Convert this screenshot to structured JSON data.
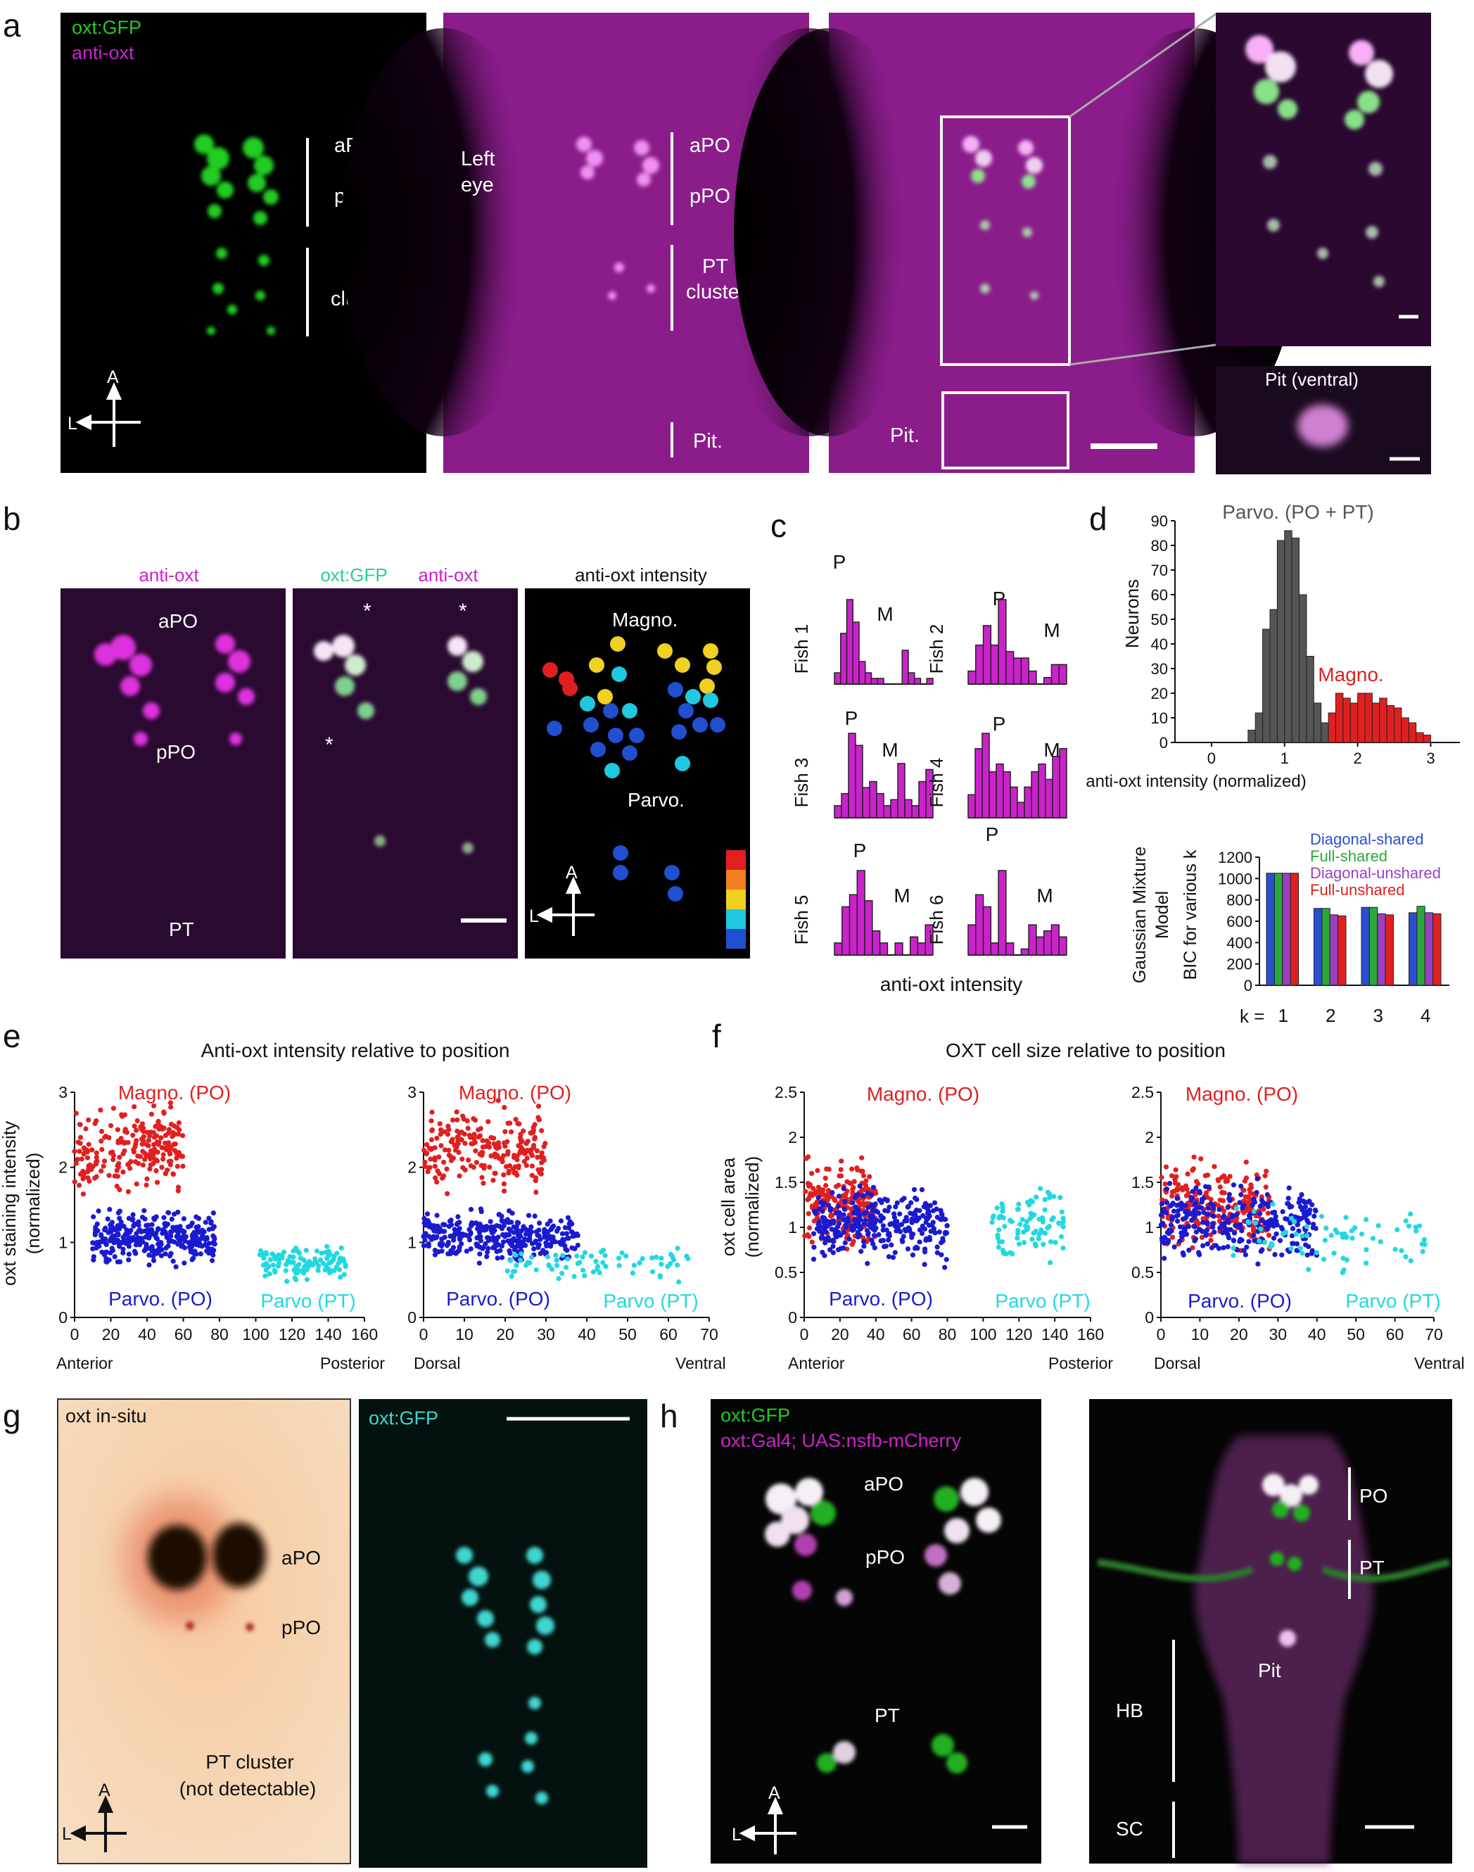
{
  "panel_letters": [
    "a",
    "b",
    "c",
    "d",
    "e",
    "f",
    "g",
    "h"
  ],
  "colors": {
    "magenta": "#cc22cc",
    "green": "#22cc22",
    "teal_green": "#2bd08a",
    "cyan": "#22d8e0",
    "red": "#e02020",
    "blue": "#1a1ad0",
    "grey_bar": "#555555",
    "insitu_bg": "#f3cfa8",
    "insitu_spot": "#1a0a05",
    "cyan_gfp": "#3fd6d0"
  },
  "a": {
    "legend_green": "oxt:GFP",
    "legend_magenta": "anti-oxt",
    "labels": {
      "apo": "aPO",
      "ppo": "pPO",
      "pt": "PT",
      "cluster": "cluster",
      "left": "Left",
      "eye": "eye",
      "pit": "Pit.",
      "pit_ventral": "Pit (ventral)"
    },
    "compass": {
      "a": "A",
      "l": "L"
    }
  },
  "b": {
    "titles": {
      "anti_oxt": "anti-oxt",
      "oxt_gfp": "oxt:GFP",
      "anti_oxt_2": "anti-oxt",
      "intensity": "anti-oxt intensity"
    },
    "labels": {
      "apo": "aPO",
      "ppo": "pPO",
      "pt": "PT",
      "magno": "Magno.",
      "parvo": "Parvo.",
      "star": "*"
    },
    "compass": {
      "a": "A",
      "l": "L"
    }
  },
  "c": {
    "xlabel": "anti-oxt intensity",
    "peak_p": "P",
    "peak_m": "M",
    "fish": [
      {
        "label": "Fish 1",
        "values": [
          2,
          9,
          15,
          11,
          4,
          2,
          1,
          1,
          0,
          0,
          0,
          6,
          2,
          1,
          0,
          1
        ]
      },
      {
        "label": "Fish 2",
        "values": [
          2,
          6,
          9,
          6,
          13,
          5,
          4,
          4,
          2,
          0,
          1,
          3,
          3
        ]
      },
      {
        "label": "Fish 3",
        "values": [
          2,
          4,
          14,
          12,
          5,
          6,
          4,
          2,
          3,
          9,
          3,
          2,
          6,
          8
        ]
      },
      {
        "label": "Fish 4",
        "values": [
          3,
          9,
          11,
          6,
          7,
          6,
          4,
          2,
          4,
          6,
          7,
          5,
          8,
          9
        ]
      },
      {
        "label": "Fish 5",
        "values": [
          2,
          8,
          10,
          14,
          9,
          4,
          2,
          0,
          2,
          0,
          3,
          2,
          5
        ]
      },
      {
        "label": "Fish 6",
        "values": [
          5,
          10,
          8,
          2,
          14,
          2,
          0,
          1,
          5,
          3,
          4,
          5,
          3
        ]
      }
    ]
  },
  "d": {
    "title_parvo": "Parvo. (PO + PT)",
    "title_magno": "Magno.",
    "xlabel": "anti-oxt intensity (normalized)",
    "ylabel": "Neurons",
    "bic_ylabel_1": "Gaussian Mixture",
    "bic_ylabel_2": "Model",
    "bic_ylabel_3": "BIC for various k",
    "k_prefix": "k =",
    "models": [
      "Diagonal-shared",
      "Full-shared",
      "Diagonal-unshared",
      "Full-unshared"
    ],
    "model_colors": [
      "#2a4fd0",
      "#2aa83a",
      "#9a40c0",
      "#e02020"
    ]
  },
  "e": {
    "title": "Anti-oxt intensity relative to position",
    "ylabel_1": "oxt staining intensity",
    "ylabel_2": "(normalized)",
    "magno": "Magno. (PO)",
    "parvo_po": "Parvo. (PO)",
    "parvo_pt": "Parvo (PT)",
    "anterior": "Anterior",
    "posterior": "Posterior",
    "dorsal": "Dorsal",
    "ventral": "Ventral"
  },
  "f": {
    "title": "OXT cell size relative to position",
    "ylabel_1": "oxt cell area",
    "ylabel_2": "(normalized)",
    "magno": "Magno. (PO)",
    "parvo_po": "Parvo. (PO)",
    "parvo_pt": "Parvo (PT)",
    "anterior": "Anterior",
    "posterior": "Posterior",
    "dorsal": "Dorsal",
    "ventral": "Ventral"
  },
  "g": {
    "insitu": "oxt in-situ",
    "gfp": "oxt:GFP",
    "apo": "aPO",
    "ppo": "pPO",
    "pt_cluster": "PT cluster",
    "not_detectable": "(not detectable)",
    "compass": {
      "a": "A",
      "l": "L"
    }
  },
  "h": {
    "legend_green": "oxt:GFP",
    "legend_magenta": "oxt:Gal4; UAS:nsfb-mCherry",
    "apo": "aPO",
    "ppo": "pPO",
    "pt": "PT",
    "po": "PO",
    "pit": "Pit",
    "hb": "HB",
    "sc": "SC",
    "compass": {
      "a": "A",
      "l": "L"
    }
  },
  "chart_data": [
    {
      "type": "bar",
      "id": "d-histogram",
      "ylabel": "Neurons",
      "xlabel": "anti-oxt intensity (normalized)",
      "xlim": [
        -0.5,
        3.4
      ],
      "ylim": [
        0,
        90
      ],
      "xticks": [
        0,
        1,
        2,
        3
      ],
      "yticks": [
        0,
        10,
        20,
        30,
        40,
        50,
        60,
        70,
        80,
        90
      ],
      "bin_width": 0.1,
      "series": [
        {
          "name": "Parvo. (PO + PT)",
          "color": "#555555",
          "x": [
            0.5,
            0.6,
            0.7,
            0.8,
            0.9,
            1.0,
            1.1,
            1.2,
            1.3,
            1.4,
            1.5
          ],
          "values": [
            5,
            12,
            46,
            54,
            82,
            86,
            83,
            60,
            35,
            16,
            8
          ]
        },
        {
          "name": "Magno.",
          "color": "#e02020",
          "x": [
            1.6,
            1.7,
            1.8,
            1.9,
            2.0,
            2.1,
            2.2,
            2.3,
            2.4,
            2.5,
            2.6,
            2.7,
            2.8,
            2.9
          ],
          "values": [
            12,
            20,
            18,
            16,
            20,
            20,
            16,
            18,
            15,
            14,
            10,
            8,
            4,
            3
          ]
        }
      ]
    },
    {
      "type": "bar",
      "id": "d-bic",
      "ylabel": "BIC for various k",
      "categories": [
        "1",
        "2",
        "3",
        "4"
      ],
      "ylim": [
        0,
        1200
      ],
      "yticks": [
        0,
        200,
        400,
        600,
        800,
        1000,
        1200
      ],
      "series": [
        {
          "name": "Diagonal-shared",
          "values": [
            1050,
            720,
            730,
            680
          ]
        },
        {
          "name": "Full-shared",
          "values": [
            1050,
            720,
            730,
            740
          ]
        },
        {
          "name": "Diagonal-unshared",
          "values": [
            1050,
            660,
            670,
            680
          ]
        },
        {
          "name": "Full-unshared",
          "values": [
            1050,
            650,
            660,
            670
          ]
        }
      ]
    },
    {
      "type": "scatter",
      "id": "e-left",
      "xlim": [
        0,
        160
      ],
      "ylim": [
        0,
        3
      ],
      "xticks": [
        0,
        20,
        40,
        60,
        80,
        100,
        120,
        140,
        160
      ],
      "yticks": [
        0,
        1,
        2,
        3
      ],
      "series": [
        {
          "name": "Magno. (PO)",
          "color": "#e02020",
          "x_range": [
            0,
            60
          ],
          "y_range": [
            1.55,
            2.95
          ]
        },
        {
          "name": "Parvo. (PO)",
          "color": "#1a1ad0",
          "x_range": [
            10,
            78
          ],
          "y_range": [
            0.6,
            1.5
          ]
        },
        {
          "name": "Parvo (PT)",
          "color": "#22d8e0",
          "x_range": [
            102,
            150
          ],
          "y_range": [
            0.4,
            1.05
          ]
        }
      ]
    },
    {
      "type": "scatter",
      "id": "e-right",
      "xlim": [
        0,
        70
      ],
      "ylim": [
        0,
        3
      ],
      "xticks": [
        0,
        10,
        20,
        30,
        40,
        50,
        60,
        70
      ],
      "yticks": [
        0,
        1,
        2,
        3
      ],
      "series": [
        {
          "name": "Magno. (PO)",
          "color": "#e02020",
          "x_range": [
            0,
            30
          ],
          "y_range": [
            1.55,
            2.95
          ]
        },
        {
          "name": "Parvo. (PO)",
          "color": "#1a1ad0",
          "x_range": [
            0,
            38
          ],
          "y_range": [
            0.65,
            1.5
          ]
        },
        {
          "name": "Parvo (PT)",
          "color": "#22d8e0",
          "x_range": [
            20,
            65
          ],
          "y_range": [
            0.45,
            1.0
          ]
        }
      ]
    },
    {
      "type": "scatter",
      "id": "f-left",
      "xlim": [
        0,
        160
      ],
      "ylim": [
        0,
        2.5
      ],
      "xticks": [
        0,
        20,
        40,
        60,
        80,
        100,
        120,
        140,
        160
      ],
      "yticks": [
        0,
        0.5,
        1,
        1.5,
        2,
        2.5
      ],
      "series": [
        {
          "name": "Magno. (PO)",
          "color": "#e02020",
          "x_range": [
            0,
            40
          ],
          "y_range": [
            0.6,
            1.9
          ]
        },
        {
          "name": "Parvo. (PO)",
          "color": "#1a1ad0",
          "x_range": [
            5,
            80
          ],
          "y_range": [
            0.5,
            1.6
          ]
        },
        {
          "name": "Parvo (PT)",
          "color": "#22d8e0",
          "x_range": [
            105,
            145
          ],
          "y_range": [
            0.4,
            1.6
          ]
        }
      ]
    },
    {
      "type": "scatter",
      "id": "f-right",
      "xlim": [
        0,
        70
      ],
      "ylim": [
        0,
        2.5
      ],
      "xticks": [
        0,
        10,
        20,
        30,
        40,
        50,
        60,
        70
      ],
      "yticks": [
        0,
        0.5,
        1,
        1.5,
        2,
        2.5
      ],
      "series": [
        {
          "name": "Magno. (PO)",
          "color": "#e02020",
          "x_range": [
            0,
            28
          ],
          "y_range": [
            0.6,
            1.9
          ]
        },
        {
          "name": "Parvo. (PO)",
          "color": "#1a1ad0",
          "x_range": [
            0,
            40
          ],
          "y_range": [
            0.5,
            1.6
          ]
        },
        {
          "name": "Parvo (PT)",
          "color": "#22d8e0",
          "x_range": [
            18,
            68
          ],
          "y_range": [
            0.4,
            1.35
          ]
        }
      ]
    }
  ]
}
